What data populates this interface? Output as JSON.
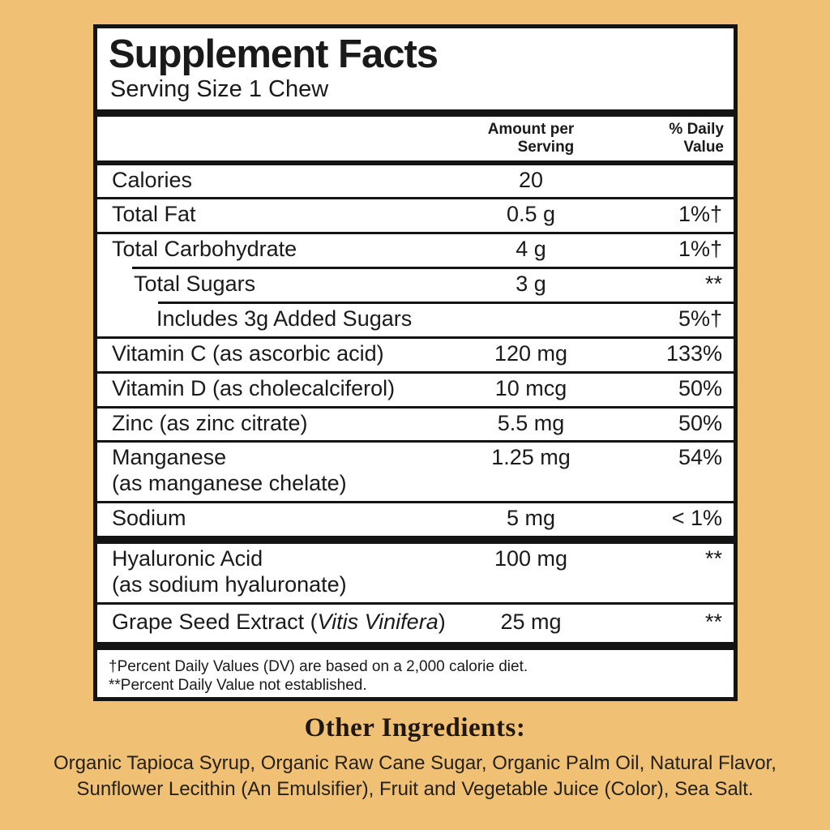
{
  "colors": {
    "background": "#F0C175",
    "panel_background": "#FFFFFF",
    "rule_black": "#141414",
    "text_black": "#1A1A1A"
  },
  "panel": {
    "title": "Supplement Facts",
    "serving_size": "Serving Size 1 Chew",
    "header": {
      "amount": "Amount per\nServing",
      "daily_value": "% Daily\nValue"
    },
    "rows": [
      {
        "label": "Calories",
        "amount": "20",
        "dv": ""
      },
      {
        "label": "Total Fat",
        "amount": "0.5 g",
        "dv": "1%†"
      },
      {
        "label": "Total Carbohydrate",
        "amount": "4 g",
        "dv": "1%†"
      },
      {
        "label": "Total Sugars",
        "amount": "3 g",
        "dv": "**"
      },
      {
        "label": "Includes 3g Added Sugars",
        "amount": "",
        "dv": "5%†"
      },
      {
        "label": "Vitamin C (as ascorbic acid)",
        "amount": "120 mg",
        "dv": "133%"
      },
      {
        "label": "Vitamin D (as cholecalciferol)",
        "amount": "10 mcg",
        "dv": "50%"
      },
      {
        "label": "Zinc (as zinc citrate)",
        "amount": "5.5 mg",
        "dv": "50%"
      },
      {
        "label": "Manganese",
        "sublabel": "(as manganese chelate)",
        "amount": "1.25 mg",
        "dv": "54%"
      },
      {
        "label": "Sodium",
        "amount": "5 mg",
        "dv": "< 1%"
      },
      {
        "label": "Hyaluronic Acid",
        "sublabel": "(as sodium hyaluronate)",
        "amount": "100 mg",
        "dv": "**"
      },
      {
        "label_prefix": "Grape Seed Extract (",
        "label_italic": "Vitis Vinifera",
        "label_suffix": ")",
        "amount": "25 mg",
        "dv": "**"
      }
    ],
    "footnotes": [
      "†Percent Daily Values (DV) are based on a 2,000 calorie diet.",
      "**Percent Daily Value not established."
    ]
  },
  "other_ingredients": {
    "title": "Other Ingredients:",
    "text": "Organic Tapioca Syrup, Organic Raw Cane Sugar, Organic Palm Oil, Natural Flavor,\nSunflower Lecithin (An Emulsifier), Fruit and Vegetable Juice (Color), Sea Salt."
  }
}
